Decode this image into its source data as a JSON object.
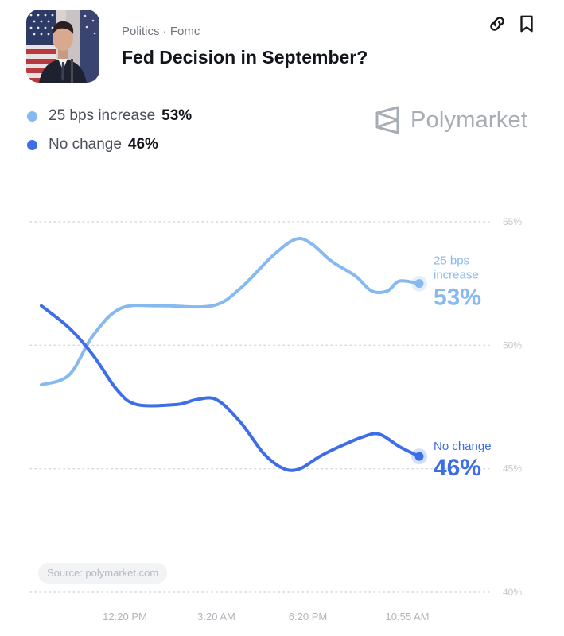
{
  "header": {
    "breadcrumb": "Politics · Fomc",
    "title": "Fed Decision in September?"
  },
  "icons": {
    "share": "link-icon",
    "bookmark": "bookmark-icon",
    "brand": "polymarket-logo-icon"
  },
  "brand": {
    "name": "Polymarket"
  },
  "legend": [
    {
      "label": "25 bps increase",
      "value": "53%",
      "color": "#86b9ef"
    },
    {
      "label": "No change",
      "value": "46%",
      "color": "#3d6ee8"
    }
  ],
  "source": "Source: polymarket.com",
  "chart_data": {
    "type": "line",
    "x_tick_labels": [
      "12:20 PM",
      "3:20 AM",
      "6:20 PM",
      "10:55 AM"
    ],
    "x_tick_positions": [
      0.21,
      0.44,
      0.67,
      0.92
    ],
    "ylim": [
      40,
      55
    ],
    "y_ticks": [
      55,
      50,
      45,
      40
    ],
    "y_tick_labels": [
      "55%",
      "50%",
      "45%",
      "40%"
    ],
    "grid": true,
    "gridline_style": "dotted",
    "series": [
      {
        "name": "25 bps increase",
        "color": "#86b9ef",
        "end_label": "25 bps\nincrease",
        "end_value": "53%",
        "points": [
          [
            0,
            48.4
          ],
          [
            0.07,
            48.8
          ],
          [
            0.13,
            50.4
          ],
          [
            0.2,
            51.5
          ],
          [
            0.3,
            51.6
          ],
          [
            0.43,
            51.6
          ],
          [
            0.5,
            52.3
          ],
          [
            0.58,
            53.6
          ],
          [
            0.64,
            54.3
          ],
          [
            0.68,
            54.1
          ],
          [
            0.73,
            53.4
          ],
          [
            0.79,
            52.8
          ],
          [
            0.83,
            52.2
          ],
          [
            0.87,
            52.2
          ],
          [
            0.9,
            52.6
          ],
          [
            0.95,
            52.5
          ]
        ]
      },
      {
        "name": "No change",
        "color": "#3d6ee8",
        "end_label": "No change",
        "end_value": "46%",
        "points": [
          [
            0,
            51.6
          ],
          [
            0.07,
            50.7
          ],
          [
            0.13,
            49.6
          ],
          [
            0.19,
            48.2
          ],
          [
            0.24,
            47.6
          ],
          [
            0.34,
            47.6
          ],
          [
            0.39,
            47.8
          ],
          [
            0.44,
            47.8
          ],
          [
            0.5,
            46.9
          ],
          [
            0.56,
            45.6
          ],
          [
            0.61,
            45.0
          ],
          [
            0.65,
            45.0
          ],
          [
            0.7,
            45.5
          ],
          [
            0.75,
            45.9
          ],
          [
            0.81,
            46.3
          ],
          [
            0.85,
            46.4
          ],
          [
            0.9,
            45.9
          ],
          [
            0.95,
            45.5
          ]
        ]
      }
    ]
  }
}
